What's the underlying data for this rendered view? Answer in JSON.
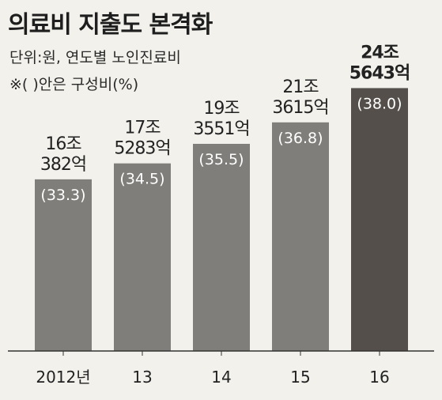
{
  "header": {
    "title": "의료비 지출도 본격화",
    "unit_note": "단위:원, 연도별 노인진료비",
    "share_note": "※( )안은 구성비(%)"
  },
  "colors": {
    "background": "#f2f1ec",
    "bar": "#7f7e7a",
    "bar_highlight": "#544f4a",
    "bar_label": "#ffffff",
    "axis": "#333333"
  },
  "chart_data": {
    "type": "bar",
    "title": "의료비 지출도 본격화",
    "xlabel": "",
    "ylabel": "",
    "categories": [
      "2012년",
      "13",
      "14",
      "15",
      "16"
    ],
    "values": [
      1603820000000,
      1752830000000,
      1935510000000,
      2136150000000,
      2456430000000
    ],
    "value_labels": [
      [
        "16조",
        "382억"
      ],
      [
        "17조",
        "5283억"
      ],
      [
        "19조",
        "3551억"
      ],
      [
        "21조",
        "3615억"
      ],
      [
        "24조",
        "5643억"
      ]
    ],
    "shares": [
      "(33.3)",
      "(34.5)",
      "(35.5)",
      "(36.8)",
      "(38.0)"
    ],
    "ylim": [
      0,
      2600000000000
    ],
    "highlight_index": 4,
    "grid": false,
    "legend": "none"
  }
}
